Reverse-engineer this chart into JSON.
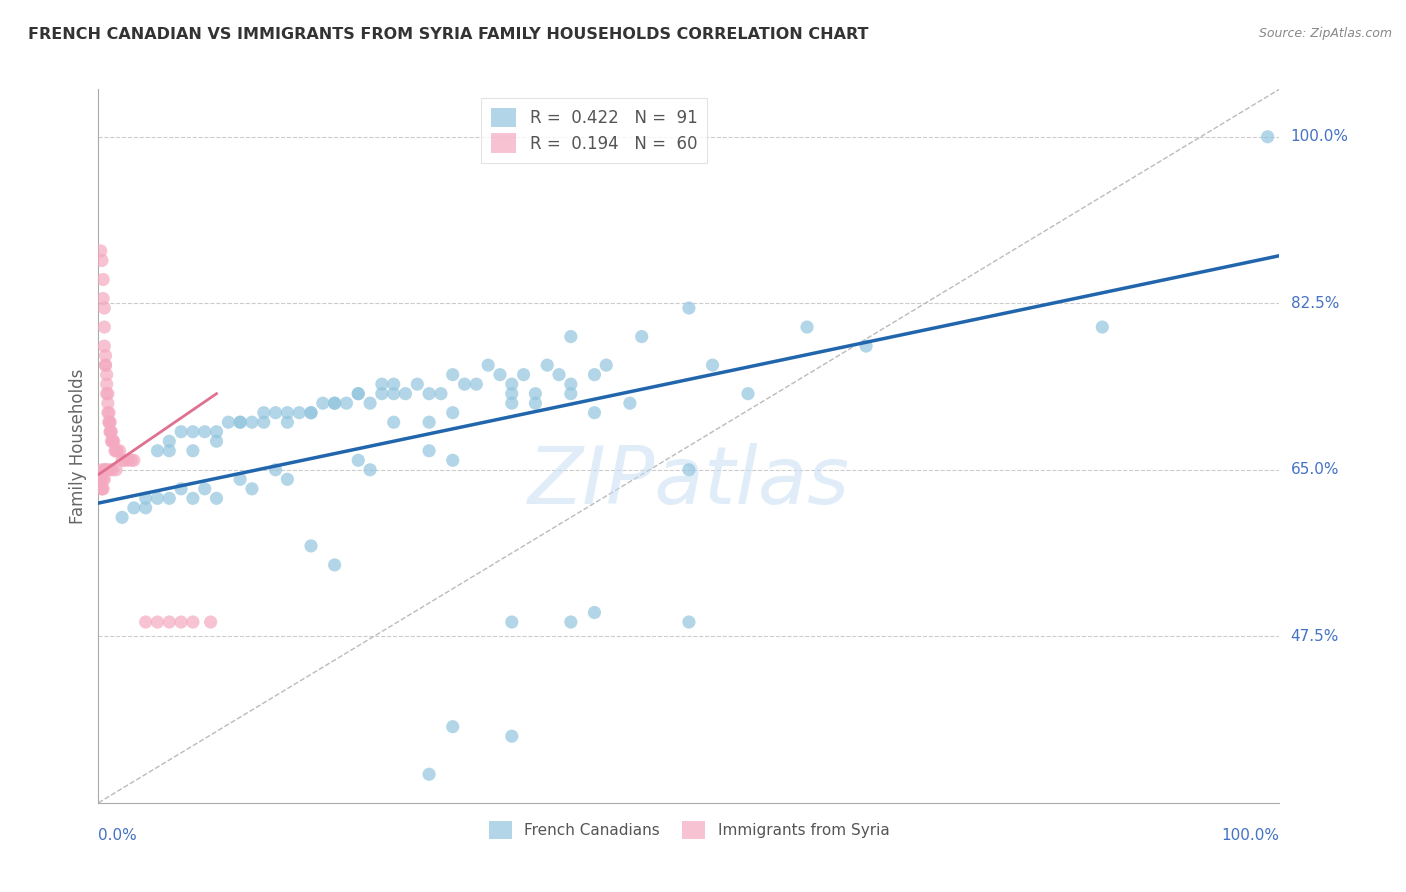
{
  "title": "FRENCH CANADIAN VS IMMIGRANTS FROM SYRIA FAMILY HOUSEHOLDS CORRELATION CHART",
  "source": "Source: ZipAtlas.com",
  "ylabel": "Family Households",
  "xlim": [
    0.0,
    1.0
  ],
  "ylim": [
    0.3,
    1.05
  ],
  "ytick_vals": [
    0.475,
    0.65,
    0.825,
    1.0
  ],
  "ytick_labels": [
    "47.5%",
    "65.0%",
    "82.5%",
    "100.0%"
  ],
  "legend_r_blue": "0.422",
  "legend_n_blue": "91",
  "legend_r_pink": "0.194",
  "legend_n_pink": "60",
  "blue_color": "#92c5de",
  "pink_color": "#f4a9c0",
  "blue_line_color": "#2166ac",
  "pink_line_color": "#e07090",
  "diagonal_color": "#bbbbbb",
  "watermark": "ZIPatlas",
  "blue_scatter_x": [
    0.99,
    0.85,
    0.6,
    0.65,
    0.5,
    0.52,
    0.43,
    0.46,
    0.4,
    0.42,
    0.38,
    0.39,
    0.4,
    0.33,
    0.34,
    0.35,
    0.36,
    0.3,
    0.31,
    0.32,
    0.27,
    0.28,
    0.29,
    0.24,
    0.25,
    0.26,
    0.22,
    0.23,
    0.24,
    0.2,
    0.21,
    0.22,
    0.18,
    0.19,
    0.2,
    0.16,
    0.17,
    0.18,
    0.14,
    0.15,
    0.16,
    0.12,
    0.13,
    0.14,
    0.1,
    0.11,
    0.12,
    0.08,
    0.09,
    0.1,
    0.06,
    0.07,
    0.08,
    0.05,
    0.06,
    0.25,
    0.3,
    0.25,
    0.28,
    0.35,
    0.37,
    0.35,
    0.37,
    0.4,
    0.42,
    0.45,
    0.5,
    0.55,
    0.28,
    0.3,
    0.22,
    0.23,
    0.15,
    0.16,
    0.12,
    0.13,
    0.09,
    0.1,
    0.07,
    0.08,
    0.05,
    0.06,
    0.04,
    0.04,
    0.03,
    0.02,
    0.18,
    0.2
  ],
  "blue_scatter_y": [
    1.0,
    0.8,
    0.8,
    0.78,
    0.82,
    0.76,
    0.76,
    0.79,
    0.79,
    0.75,
    0.76,
    0.75,
    0.74,
    0.76,
    0.75,
    0.74,
    0.75,
    0.75,
    0.74,
    0.74,
    0.74,
    0.73,
    0.73,
    0.73,
    0.74,
    0.73,
    0.73,
    0.72,
    0.74,
    0.72,
    0.72,
    0.73,
    0.71,
    0.72,
    0.72,
    0.71,
    0.71,
    0.71,
    0.71,
    0.71,
    0.7,
    0.7,
    0.7,
    0.7,
    0.69,
    0.7,
    0.7,
    0.69,
    0.69,
    0.68,
    0.68,
    0.69,
    0.67,
    0.67,
    0.67,
    0.73,
    0.71,
    0.7,
    0.7,
    0.73,
    0.73,
    0.72,
    0.72,
    0.73,
    0.71,
    0.72,
    0.65,
    0.73,
    0.67,
    0.66,
    0.66,
    0.65,
    0.65,
    0.64,
    0.64,
    0.63,
    0.63,
    0.62,
    0.63,
    0.62,
    0.62,
    0.62,
    0.62,
    0.61,
    0.61,
    0.6,
    0.57,
    0.55
  ],
  "blue_outlier_x": [
    0.35,
    0.4,
    0.42,
    0.3,
    0.35,
    0.5,
    0.28
  ],
  "blue_outlier_y": [
    0.49,
    0.49,
    0.5,
    0.38,
    0.37,
    0.49,
    0.33
  ],
  "pink_scatter_x": [
    0.002,
    0.003,
    0.004,
    0.004,
    0.005,
    0.005,
    0.005,
    0.006,
    0.006,
    0.006,
    0.007,
    0.007,
    0.007,
    0.008,
    0.008,
    0.008,
    0.009,
    0.009,
    0.009,
    0.01,
    0.01,
    0.01,
    0.011,
    0.011,
    0.012,
    0.012,
    0.013,
    0.014,
    0.015,
    0.016,
    0.018,
    0.02,
    0.022,
    0.025,
    0.028,
    0.03,
    0.01,
    0.012,
    0.015,
    0.005,
    0.006,
    0.007,
    0.003,
    0.004,
    0.005,
    0.002,
    0.002,
    0.003,
    0.003,
    0.004,
    0.04,
    0.05,
    0.06,
    0.07,
    0.08,
    0.095
  ],
  "pink_scatter_y": [
    0.88,
    0.87,
    0.85,
    0.83,
    0.82,
    0.8,
    0.78,
    0.77,
    0.76,
    0.76,
    0.75,
    0.74,
    0.73,
    0.73,
    0.72,
    0.71,
    0.71,
    0.7,
    0.7,
    0.7,
    0.69,
    0.69,
    0.69,
    0.68,
    0.68,
    0.68,
    0.68,
    0.67,
    0.67,
    0.67,
    0.67,
    0.66,
    0.66,
    0.66,
    0.66,
    0.66,
    0.65,
    0.65,
    0.65,
    0.65,
    0.65,
    0.65,
    0.65,
    0.64,
    0.64,
    0.64,
    0.64,
    0.63,
    0.63,
    0.63,
    0.49,
    0.49,
    0.49,
    0.49,
    0.49,
    0.49
  ],
  "blue_trendline_x": [
    0.0,
    1.0
  ],
  "blue_trendline_y": [
    0.615,
    0.875
  ],
  "pink_trendline_x": [
    0.0,
    0.1
  ],
  "pink_trendline_y": [
    0.645,
    0.73
  ],
  "background_color": "#ffffff",
  "grid_color": "#cccccc",
  "title_color": "#333333",
  "axis_color": "#4472c4",
  "ylabel_color": "#666666"
}
